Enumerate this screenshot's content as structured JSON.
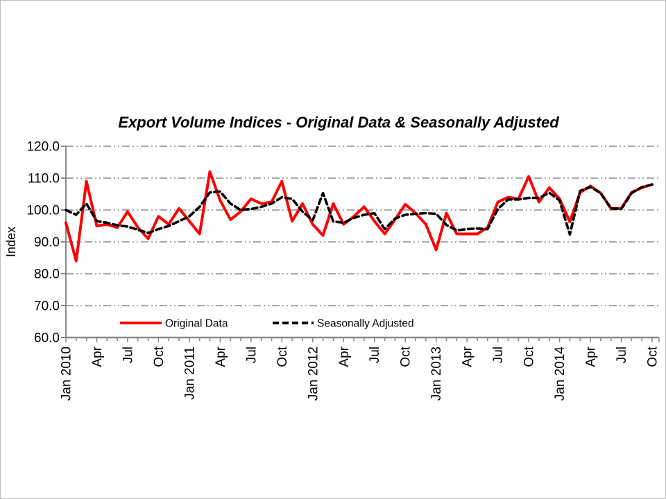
{
  "page": {
    "background_color": "#ffffff",
    "border_color": "#bdbdbd"
  },
  "chart_data": {
    "type": "line",
    "title": "Export Volume Indices - Original Data & Seasonally Adjusted",
    "xlabel": "",
    "ylabel": "Index",
    "ylim": [
      60,
      120
    ],
    "ytick_step": 10,
    "ytick_labels": [
      "120.0",
      "110.0",
      "100.0",
      "90.0",
      "80.0",
      "70.0",
      "60.0"
    ],
    "grid": "horizontal dash-dot gray lines at every 10 units",
    "grid_color": "#8c8c8c",
    "axis_color": "#898989",
    "legend_position": "inside bottom, horizontal",
    "xtick_every": 3,
    "xtick_labels": [
      "Jan 2010",
      "Apr",
      "Jul",
      "Oct",
      "Jan 2011",
      "Apr",
      "Jul",
      "Oct",
      "Jan 2012",
      "Apr",
      "Jul",
      "Oct",
      "Jan 2013",
      "Apr",
      "Jul",
      "Oct",
      "Jan 2014",
      "Apr",
      "Jul",
      "Oct"
    ],
    "categories": [
      "Jan 2010",
      "Feb 2010",
      "Mar 2010",
      "Apr 2010",
      "May 2010",
      "Jun 2010",
      "Jul 2010",
      "Aug 2010",
      "Sep 2010",
      "Oct 2010",
      "Nov 2010",
      "Dec 2010",
      "Jan 2011",
      "Feb 2011",
      "Mar 2011",
      "Apr 2011",
      "May 2011",
      "Jun 2011",
      "Jul 2011",
      "Aug 2011",
      "Sep 2011",
      "Oct 2011",
      "Nov 2011",
      "Dec 2011",
      "Jan 2012",
      "Feb 2012",
      "Mar 2012",
      "Apr 2012",
      "May 2012",
      "Jun 2012",
      "Jul 2012",
      "Aug 2012",
      "Sep 2012",
      "Oct 2012",
      "Nov 2012",
      "Dec 2012",
      "Jan 2013",
      "Feb 2013",
      "Mar 2013",
      "Apr 2013",
      "May 2013",
      "Jun 2013",
      "Jul 2013",
      "Aug 2013",
      "Sep 2013",
      "Oct 2013",
      "Nov 2013",
      "Dec 2013",
      "Jan 2014",
      "Feb 2014",
      "Mar 2014",
      "Apr 2014",
      "May 2014",
      "Jun 2014",
      "Jul 2014",
      "Aug 2014",
      "Sep 2014",
      "Oct 2014"
    ],
    "series": [
      {
        "name": "Original Data",
        "color": "#ff0000",
        "style": "solid",
        "line_width": 4,
        "values": [
          96,
          84,
          109,
          95,
          95.5,
          94.5,
          99.5,
          94.5,
          91,
          98,
          95.5,
          100.5,
          96.5,
          92.5,
          112,
          103,
          97,
          99.5,
          103.5,
          102,
          102.5,
          109,
          96.5,
          102,
          95.5,
          92,
          102,
          95.5,
          98,
          101,
          96.5,
          92.5,
          97,
          101.8,
          99,
          95.5,
          87.5,
          99,
          92.5,
          92.5,
          92.5,
          94.5,
          102.5,
          104,
          103.5,
          110.5,
          102.5,
          107,
          103.5,
          96.3,
          105.5,
          107.5,
          105.3,
          100.5,
          100.5,
          105.5,
          107,
          108
        ]
      },
      {
        "name": "Seasonally Adjusted",
        "color": "#000000",
        "style": "dashed",
        "line_width": 3.6,
        "values": [
          100,
          98.5,
          102,
          96.5,
          96,
          95.2,
          94.8,
          93.8,
          92.8,
          94,
          95,
          96.5,
          98,
          101,
          105.5,
          105.8,
          102,
          100,
          100.3,
          101,
          102,
          104,
          103.5,
          99.5,
          96.8,
          105.3,
          96.4,
          96,
          97.5,
          98.5,
          99,
          94,
          97.3,
          98.5,
          98.8,
          99,
          98.8,
          95.3,
          93.6,
          94,
          94.2,
          94,
          100.3,
          103.3,
          103.3,
          103.8,
          103.8,
          105.4,
          103,
          92.3,
          106,
          107.2,
          105.3,
          100.5,
          100.3,
          105.3,
          107.2,
          108
        ]
      }
    ]
  }
}
